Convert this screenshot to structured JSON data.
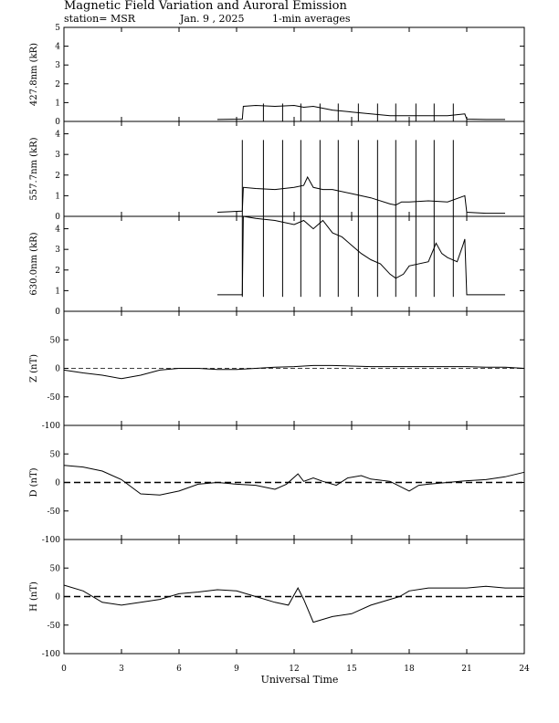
{
  "title": "Magnetic Field Variation and Auroral Emission",
  "station": "station= MSR",
  "date": "Jan. 9 , 2025",
  "averaging": "1-min averages",
  "x_axis_label": "Universal Time",
  "chart_data": {
    "type": "line",
    "x_label": "Universal Time",
    "x_ticks": [
      0,
      3,
      6,
      9,
      12,
      15,
      18,
      21,
      24
    ],
    "xlim": [
      0,
      24
    ],
    "panels": [
      {
        "key": "p4278",
        "ylabel": "427.8nm (kR)",
        "ylim": [
          0,
          5
        ],
        "yticks": [
          0,
          1,
          2,
          3,
          4,
          5
        ],
        "zero_line": "none",
        "spike_times": [
          10.4,
          11.4,
          12.35,
          13.35,
          14.3,
          15.35,
          16.35,
          17.3,
          18.35,
          19.3,
          20.3
        ],
        "spike_top": 0.95,
        "series": [
          [
            8.0,
            0.1
          ],
          [
            9.3,
            0.12
          ],
          [
            9.35,
            0.8
          ],
          [
            10.0,
            0.85
          ],
          [
            11.0,
            0.8
          ],
          [
            12.0,
            0.85
          ],
          [
            12.5,
            0.75
          ],
          [
            13.0,
            0.8
          ],
          [
            14.0,
            0.6
          ],
          [
            15.0,
            0.5
          ],
          [
            16.0,
            0.4
          ],
          [
            17.0,
            0.3
          ],
          [
            18.0,
            0.3
          ],
          [
            19.0,
            0.3
          ],
          [
            20.0,
            0.3
          ],
          [
            20.9,
            0.4
          ],
          [
            21.0,
            0.12
          ],
          [
            22.0,
            0.1
          ],
          [
            23.0,
            0.1
          ]
        ]
      },
      {
        "key": "p5577",
        "ylabel": "557.7nm (kR)",
        "ylim": [
          0,
          4.6
        ],
        "yticks": [
          0,
          1,
          2,
          3,
          4
        ],
        "zero_line": "none",
        "spike_times": [
          9.3,
          10.4,
          11.4,
          12.35,
          13.35,
          14.3,
          15.35,
          16.35,
          17.3,
          18.35,
          19.3,
          20.3
        ],
        "spike_top": 3.7,
        "series": [
          [
            8.0,
            0.2
          ],
          [
            9.3,
            0.25
          ],
          [
            9.35,
            1.4
          ],
          [
            10.0,
            1.35
          ],
          [
            11.0,
            1.3
          ],
          [
            12.0,
            1.4
          ],
          [
            12.5,
            1.5
          ],
          [
            12.7,
            1.9
          ],
          [
            13.0,
            1.4
          ],
          [
            13.5,
            1.3
          ],
          [
            14.0,
            1.3
          ],
          [
            15.0,
            1.1
          ],
          [
            16.0,
            0.9
          ],
          [
            17.0,
            0.6
          ],
          [
            17.3,
            0.55
          ],
          [
            17.6,
            0.7
          ],
          [
            18.0,
            0.7
          ],
          [
            19.0,
            0.75
          ],
          [
            20.0,
            0.7
          ],
          [
            20.9,
            1.0
          ],
          [
            21.0,
            0.2
          ],
          [
            22.0,
            0.15
          ],
          [
            23.0,
            0.15
          ]
        ]
      },
      {
        "key": "p6300",
        "ylabel": "630.0nm (kR)",
        "ylim": [
          0,
          4.6
        ],
        "yticks": [
          0,
          1,
          2,
          3,
          4
        ],
        "zero_line": "none",
        "spike_times": [
          9.3,
          10.4,
          11.4,
          12.35,
          13.35,
          14.3,
          15.35,
          16.35,
          17.3,
          18.35,
          19.3,
          20.3
        ],
        "spike_top": 4.6,
        "spike_bottom": 0.7,
        "series": [
          [
            8.0,
            0.8
          ],
          [
            9.3,
            0.8
          ],
          [
            9.35,
            4.6
          ],
          [
            10.0,
            4.5
          ],
          [
            11.0,
            4.4
          ],
          [
            12.0,
            4.2
          ],
          [
            12.5,
            4.4
          ],
          [
            13.0,
            4.0
          ],
          [
            13.5,
            4.4
          ],
          [
            14.0,
            3.8
          ],
          [
            14.5,
            3.6
          ],
          [
            15.0,
            3.2
          ],
          [
            15.5,
            2.8
          ],
          [
            16.0,
            2.5
          ],
          [
            16.5,
            2.3
          ],
          [
            17.0,
            1.8
          ],
          [
            17.3,
            1.6
          ],
          [
            17.7,
            1.8
          ],
          [
            18.0,
            2.2
          ],
          [
            19.0,
            2.4
          ],
          [
            19.4,
            3.3
          ],
          [
            19.7,
            2.8
          ],
          [
            20.0,
            2.6
          ],
          [
            20.5,
            2.4
          ],
          [
            20.8,
            3.2
          ],
          [
            20.9,
            3.5
          ],
          [
            21.0,
            0.8
          ],
          [
            22.0,
            0.8
          ],
          [
            23.0,
            0.8
          ]
        ]
      },
      {
        "key": "pz",
        "ylabel": "Z (nT)",
        "ylim": [
          -100,
          100
        ],
        "yticks": [
          -100,
          -50,
          0,
          50
        ],
        "zero_line": "thin",
        "series": [
          [
            0,
            -3
          ],
          [
            1,
            -8
          ],
          [
            2,
            -12
          ],
          [
            3,
            -18
          ],
          [
            4,
            -12
          ],
          [
            5,
            -3
          ],
          [
            6,
            0
          ],
          [
            7,
            0
          ],
          [
            8,
            -2
          ],
          [
            9,
            -2
          ],
          [
            10,
            0
          ],
          [
            11,
            2
          ],
          [
            12,
            3
          ],
          [
            13,
            5
          ],
          [
            14,
            5
          ],
          [
            15,
            4
          ],
          [
            16,
            3
          ],
          [
            17,
            3
          ],
          [
            18,
            3
          ],
          [
            19,
            3
          ],
          [
            20,
            3
          ],
          [
            21,
            3
          ],
          [
            22,
            2
          ],
          [
            23,
            2
          ],
          [
            24,
            0
          ]
        ]
      },
      {
        "key": "pd",
        "ylabel": "D (nT)",
        "ylim": [
          -100,
          100
        ],
        "yticks": [
          -100,
          -50,
          0,
          50
        ],
        "zero_line": "thick",
        "series": [
          [
            0,
            30
          ],
          [
            1,
            27
          ],
          [
            2,
            20
          ],
          [
            3,
            5
          ],
          [
            4,
            -20
          ],
          [
            5,
            -22
          ],
          [
            6,
            -15
          ],
          [
            7,
            -3
          ],
          [
            8,
            0
          ],
          [
            9,
            -3
          ],
          [
            10,
            -5
          ],
          [
            11,
            -12
          ],
          [
            11.6,
            -3
          ],
          [
            12.2,
            15
          ],
          [
            12.5,
            2
          ],
          [
            13,
            8
          ],
          [
            13.5,
            2
          ],
          [
            14.2,
            -5
          ],
          [
            14.8,
            8
          ],
          [
            15.5,
            12
          ],
          [
            16,
            6
          ],
          [
            17,
            2
          ],
          [
            18,
            -15
          ],
          [
            18.5,
            -5
          ],
          [
            19,
            -3
          ],
          [
            20,
            0
          ],
          [
            21,
            3
          ],
          [
            22,
            5
          ],
          [
            23,
            10
          ],
          [
            24,
            18
          ]
        ]
      },
      {
        "key": "ph",
        "ylabel": "H (nT)",
        "ylim": [
          -100,
          100
        ],
        "yticks": [
          -100,
          -50,
          0,
          50
        ],
        "zero_line": "thick",
        "series": [
          [
            0,
            20
          ],
          [
            1,
            10
          ],
          [
            2,
            -10
          ],
          [
            3,
            -15
          ],
          [
            4,
            -10
          ],
          [
            5,
            -5
          ],
          [
            6,
            5
          ],
          [
            7,
            8
          ],
          [
            8,
            12
          ],
          [
            9,
            10
          ],
          [
            10,
            0
          ],
          [
            11,
            -10
          ],
          [
            11.7,
            -15
          ],
          [
            12.2,
            15
          ],
          [
            12.5,
            -5
          ],
          [
            13,
            -45
          ],
          [
            14,
            -35
          ],
          [
            15,
            -30
          ],
          [
            16,
            -15
          ],
          [
            17,
            -5
          ],
          [
            17.5,
            0
          ],
          [
            18,
            10
          ],
          [
            19,
            15
          ],
          [
            20,
            15
          ],
          [
            21,
            15
          ],
          [
            22,
            18
          ],
          [
            23,
            15
          ],
          [
            24,
            15
          ]
        ]
      }
    ]
  }
}
